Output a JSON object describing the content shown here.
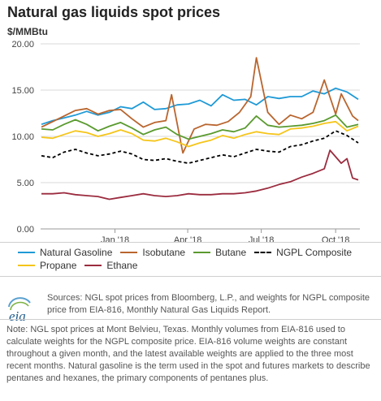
{
  "header": {
    "title": "Natural gas liquids spot prices",
    "unit": "$/MMBtu"
  },
  "chart_data": {
    "type": "line",
    "ylim": [
      0,
      20
    ],
    "y_ticks": [
      "0.00",
      "5.00",
      "10.00",
      "15.00",
      "20.00"
    ],
    "x_ticks": [
      "Jan '18",
      "Apr '18",
      "Jul '18",
      "Oct '18"
    ],
    "x_tick_dates": [
      "2018-01-01",
      "2018-04-01",
      "2018-07-01",
      "2018-10-01"
    ],
    "xlim": [
      "2017-10-01",
      "2018-10-31"
    ],
    "grid": true,
    "legend_position": "bottom",
    "series": [
      {
        "name": "Natural Gasoline",
        "color": "#1f9ad6",
        "dash": false,
        "points": [
          [
            "2017-10-02",
            11.3
          ],
          [
            "2017-10-16",
            11.7
          ],
          [
            "2017-10-30",
            12.0
          ],
          [
            "2017-11-13",
            12.3
          ],
          [
            "2017-11-27",
            12.7
          ],
          [
            "2017-12-11",
            12.3
          ],
          [
            "2017-12-25",
            12.6
          ],
          [
            "2018-01-08",
            13.2
          ],
          [
            "2018-01-22",
            13.0
          ],
          [
            "2018-02-05",
            13.7
          ],
          [
            "2018-02-19",
            12.9
          ],
          [
            "2018-03-05",
            13.0
          ],
          [
            "2018-03-19",
            13.4
          ],
          [
            "2018-04-02",
            13.5
          ],
          [
            "2018-04-16",
            13.9
          ],
          [
            "2018-04-30",
            13.3
          ],
          [
            "2018-05-14",
            14.5
          ],
          [
            "2018-05-28",
            13.9
          ],
          [
            "2018-06-11",
            14.0
          ],
          [
            "2018-06-25",
            13.4
          ],
          [
            "2018-07-09",
            14.3
          ],
          [
            "2018-07-23",
            14.1
          ],
          [
            "2018-08-06",
            14.3
          ],
          [
            "2018-08-20",
            14.3
          ],
          [
            "2018-09-03",
            14.9
          ],
          [
            "2018-09-17",
            14.6
          ],
          [
            "2018-10-01",
            15.2
          ],
          [
            "2018-10-15",
            14.8
          ],
          [
            "2018-10-29",
            14.0
          ]
        ]
      },
      {
        "name": "Isobutane",
        "color": "#b9652e",
        "dash": false,
        "points": [
          [
            "2017-10-02",
            11.0
          ],
          [
            "2017-10-16",
            11.6
          ],
          [
            "2017-10-30",
            12.2
          ],
          [
            "2017-11-13",
            12.8
          ],
          [
            "2017-11-27",
            13.0
          ],
          [
            "2017-12-11",
            12.4
          ],
          [
            "2017-12-25",
            12.8
          ],
          [
            "2018-01-08",
            12.9
          ],
          [
            "2018-01-22",
            11.9
          ],
          [
            "2018-02-05",
            11.0
          ],
          [
            "2018-02-19",
            11.5
          ],
          [
            "2018-03-05",
            11.7
          ],
          [
            "2018-03-12",
            14.5
          ],
          [
            "2018-03-26",
            8.2
          ],
          [
            "2018-04-09",
            10.8
          ],
          [
            "2018-04-23",
            11.3
          ],
          [
            "2018-05-07",
            11.2
          ],
          [
            "2018-05-21",
            11.6
          ],
          [
            "2018-06-04",
            12.6
          ],
          [
            "2018-06-18",
            14.3
          ],
          [
            "2018-06-25",
            18.5
          ],
          [
            "2018-07-09",
            12.6
          ],
          [
            "2018-07-23",
            11.3
          ],
          [
            "2018-08-06",
            12.3
          ],
          [
            "2018-08-20",
            11.9
          ],
          [
            "2018-09-03",
            12.6
          ],
          [
            "2018-09-17",
            16.1
          ],
          [
            "2018-10-01",
            12.4
          ],
          [
            "2018-10-08",
            14.6
          ],
          [
            "2018-10-22",
            12.2
          ],
          [
            "2018-10-29",
            11.7
          ]
        ]
      },
      {
        "name": "Butane",
        "color": "#5a9a2f",
        "dash": false,
        "points": [
          [
            "2017-10-02",
            10.8
          ],
          [
            "2017-10-16",
            10.7
          ],
          [
            "2017-10-30",
            11.3
          ],
          [
            "2017-11-13",
            11.8
          ],
          [
            "2017-11-27",
            11.3
          ],
          [
            "2017-12-11",
            10.6
          ],
          [
            "2017-12-25",
            11.1
          ],
          [
            "2018-01-08",
            11.5
          ],
          [
            "2018-01-22",
            10.9
          ],
          [
            "2018-02-05",
            10.2
          ],
          [
            "2018-02-19",
            10.7
          ],
          [
            "2018-03-05",
            11.0
          ],
          [
            "2018-03-19",
            10.2
          ],
          [
            "2018-04-02",
            9.7
          ],
          [
            "2018-04-16",
            10.0
          ],
          [
            "2018-04-30",
            10.3
          ],
          [
            "2018-05-14",
            10.7
          ],
          [
            "2018-05-28",
            10.5
          ],
          [
            "2018-06-11",
            10.9
          ],
          [
            "2018-06-25",
            12.2
          ],
          [
            "2018-07-09",
            11.2
          ],
          [
            "2018-07-23",
            11.0
          ],
          [
            "2018-08-06",
            11.1
          ],
          [
            "2018-08-20",
            11.2
          ],
          [
            "2018-09-03",
            11.4
          ],
          [
            "2018-09-17",
            11.7
          ],
          [
            "2018-10-01",
            12.3
          ],
          [
            "2018-10-15",
            11.0
          ],
          [
            "2018-10-29",
            11.3
          ]
        ]
      },
      {
        "name": "NGPL Composite",
        "color": "#000000",
        "dash": true,
        "points": [
          [
            "2017-10-02",
            7.9
          ],
          [
            "2017-10-16",
            7.7
          ],
          [
            "2017-10-30",
            8.3
          ],
          [
            "2017-11-13",
            8.6
          ],
          [
            "2017-11-27",
            8.2
          ],
          [
            "2017-12-11",
            7.9
          ],
          [
            "2017-12-25",
            8.1
          ],
          [
            "2018-01-08",
            8.4
          ],
          [
            "2018-01-22",
            8.1
          ],
          [
            "2018-02-05",
            7.5
          ],
          [
            "2018-02-19",
            7.4
          ],
          [
            "2018-03-05",
            7.6
          ],
          [
            "2018-03-19",
            7.3
          ],
          [
            "2018-04-02",
            7.1
          ],
          [
            "2018-04-16",
            7.4
          ],
          [
            "2018-04-30",
            7.7
          ],
          [
            "2018-05-14",
            8.0
          ],
          [
            "2018-05-28",
            7.8
          ],
          [
            "2018-06-11",
            8.2
          ],
          [
            "2018-06-25",
            8.6
          ],
          [
            "2018-07-09",
            8.4
          ],
          [
            "2018-07-23",
            8.3
          ],
          [
            "2018-08-06",
            8.9
          ],
          [
            "2018-08-20",
            9.1
          ],
          [
            "2018-09-03",
            9.5
          ],
          [
            "2018-09-17",
            9.8
          ],
          [
            "2018-10-01",
            10.6
          ],
          [
            "2018-10-15",
            10.1
          ],
          [
            "2018-10-29",
            9.3
          ]
        ]
      },
      {
        "name": "Propane",
        "color": "#f5c51a",
        "dash": false,
        "points": [
          [
            "2017-10-02",
            9.9
          ],
          [
            "2017-10-16",
            9.8
          ],
          [
            "2017-10-30",
            10.2
          ],
          [
            "2017-11-13",
            10.6
          ],
          [
            "2017-11-27",
            10.4
          ],
          [
            "2017-12-11",
            10.0
          ],
          [
            "2017-12-25",
            10.3
          ],
          [
            "2018-01-08",
            10.7
          ],
          [
            "2018-01-22",
            10.3
          ],
          [
            "2018-02-05",
            9.6
          ],
          [
            "2018-02-19",
            9.5
          ],
          [
            "2018-03-05",
            9.8
          ],
          [
            "2018-03-19",
            9.4
          ],
          [
            "2018-04-02",
            8.9
          ],
          [
            "2018-04-16",
            9.3
          ],
          [
            "2018-04-30",
            9.6
          ],
          [
            "2018-05-14",
            10.1
          ],
          [
            "2018-05-28",
            9.8
          ],
          [
            "2018-06-11",
            10.2
          ],
          [
            "2018-06-25",
            10.5
          ],
          [
            "2018-07-09",
            10.3
          ],
          [
            "2018-07-23",
            10.2
          ],
          [
            "2018-08-06",
            10.8
          ],
          [
            "2018-08-20",
            10.9
          ],
          [
            "2018-09-03",
            11.1
          ],
          [
            "2018-09-17",
            11.4
          ],
          [
            "2018-10-01",
            11.6
          ],
          [
            "2018-10-15",
            10.6
          ],
          [
            "2018-10-29",
            11.1
          ]
        ]
      },
      {
        "name": "Ethane",
        "color": "#9b2c3f",
        "dash": false,
        "points": [
          [
            "2017-10-02",
            3.8
          ],
          [
            "2017-10-16",
            3.8
          ],
          [
            "2017-10-30",
            3.9
          ],
          [
            "2017-11-13",
            3.7
          ],
          [
            "2017-11-27",
            3.6
          ],
          [
            "2017-12-11",
            3.5
          ],
          [
            "2017-12-25",
            3.2
          ],
          [
            "2018-01-08",
            3.4
          ],
          [
            "2018-01-22",
            3.6
          ],
          [
            "2018-02-05",
            3.8
          ],
          [
            "2018-02-19",
            3.6
          ],
          [
            "2018-03-05",
            3.5
          ],
          [
            "2018-03-19",
            3.6
          ],
          [
            "2018-04-02",
            3.8
          ],
          [
            "2018-04-16",
            3.7
          ],
          [
            "2018-04-30",
            3.7
          ],
          [
            "2018-05-14",
            3.8
          ],
          [
            "2018-05-28",
            3.8
          ],
          [
            "2018-06-11",
            3.9
          ],
          [
            "2018-06-25",
            4.1
          ],
          [
            "2018-07-09",
            4.4
          ],
          [
            "2018-07-23",
            4.8
          ],
          [
            "2018-08-06",
            5.1
          ],
          [
            "2018-08-20",
            5.6
          ],
          [
            "2018-09-03",
            6.0
          ],
          [
            "2018-09-17",
            6.5
          ],
          [
            "2018-09-24",
            8.5
          ],
          [
            "2018-10-08",
            7.1
          ],
          [
            "2018-10-15",
            7.6
          ],
          [
            "2018-10-22",
            5.5
          ],
          [
            "2018-10-29",
            5.3
          ]
        ]
      }
    ]
  },
  "legend": {
    "rows": [
      [
        {
          "label": "Natural Gasoline",
          "color": "#1f9ad6",
          "dash": false
        },
        {
          "label": "Isobutane",
          "color": "#b9652e",
          "dash": false
        },
        {
          "label": "Butane",
          "color": "#5a9a2f",
          "dash": false
        },
        {
          "label": "NGPL Composite",
          "color": "#000000",
          "dash": true
        }
      ],
      [
        {
          "label": "Propane",
          "color": "#f5c51a",
          "dash": false
        },
        {
          "label": "Ethane",
          "color": "#9b2c3f",
          "dash": false
        }
      ]
    ]
  },
  "footer": {
    "logo_text": "eia",
    "sources": "Sources: NGL spot prices from Bloomberg, L.P., and weights for NGPL composite price from EIA-816, Monthly Natural Gas Liquids Report.",
    "note": "Note: NGL spot prices at Mont Belvieu, Texas. Monthly volumes from EIA-816 used to calculate weights for the NGPL composite price. EIA-816 volume weights are constant throughout a given month, and the latest available weights are applied to the three most recent months. Natural gasoline is the term used in the spot and futures markets to describe pentanes and hexanes, the primary components of pentanes plus."
  }
}
